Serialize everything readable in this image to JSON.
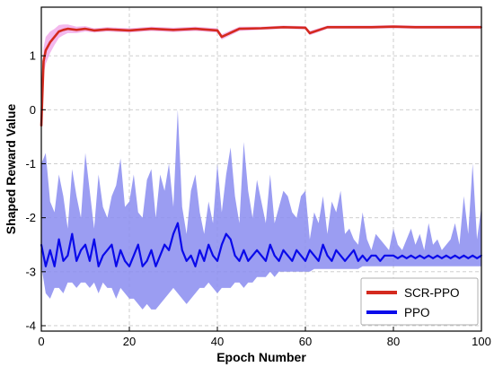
{
  "chart_data": {
    "type": "line",
    "title": "",
    "xlabel": "Epoch Number",
    "ylabel": "Shaped Reward Value",
    "xlim": [
      0,
      100
    ],
    "ylim": [
      -4.1,
      1.9
    ],
    "xticks": [
      0,
      20,
      40,
      60,
      80,
      100
    ],
    "yticks": [
      -4,
      -3,
      -2,
      -1,
      0,
      1
    ],
    "grid": true,
    "legend_position": "bottom-right",
    "series": [
      {
        "name": "SCR-PPO",
        "color": "#d42a1e",
        "band_color": "#f0a6e8",
        "x": [
          0,
          0.5,
          1,
          2,
          3,
          4,
          5,
          6,
          8,
          10,
          12,
          15,
          20,
          25,
          30,
          35,
          40,
          41,
          45,
          50,
          55,
          60,
          61,
          65,
          70,
          75,
          80,
          85,
          90,
          95,
          100
        ],
        "y": [
          -0.3,
          0.9,
          1.1,
          1.25,
          1.35,
          1.45,
          1.48,
          1.5,
          1.48,
          1.5,
          1.47,
          1.49,
          1.47,
          1.5,
          1.48,
          1.5,
          1.47,
          1.35,
          1.5,
          1.51,
          1.53,
          1.52,
          1.42,
          1.53,
          1.53,
          1.53,
          1.54,
          1.53,
          1.53,
          1.53,
          1.53
        ],
        "band": [
          0.0,
          0.25,
          0.25,
          0.2,
          0.15,
          0.12,
          0.1,
          0.08,
          0.06,
          0.05,
          0.04,
          0.04,
          0.04,
          0.04,
          0.04,
          0.04,
          0.04,
          0.05,
          0.04,
          0.03,
          0.03,
          0.03,
          0.04,
          0.03,
          0.03,
          0.03,
          0.03,
          0.03,
          0.03,
          0.03,
          0.03
        ]
      },
      {
        "name": "PPO",
        "color": "#0a0aea",
        "band_color": "#8a8cf0",
        "x": [
          0,
          1,
          2,
          3,
          4,
          5,
          6,
          7,
          8,
          9,
          10,
          11,
          12,
          13,
          14,
          15,
          16,
          17,
          18,
          19,
          20,
          21,
          22,
          23,
          24,
          25,
          26,
          27,
          28,
          29,
          30,
          31,
          32,
          33,
          34,
          35,
          36,
          37,
          38,
          39,
          40,
          41,
          42,
          43,
          44,
          45,
          46,
          47,
          48,
          49,
          50,
          51,
          52,
          53,
          54,
          55,
          56,
          57,
          58,
          59,
          60,
          61,
          62,
          63,
          64,
          65,
          66,
          67,
          68,
          69,
          70,
          71,
          72,
          73,
          74,
          75,
          76,
          77,
          78,
          79,
          80,
          81,
          82,
          83,
          84,
          85,
          86,
          87,
          88,
          89,
          90,
          91,
          92,
          93,
          94,
          95,
          96,
          97,
          98,
          99,
          100
        ],
        "y": [
          -2.5,
          -2.9,
          -2.6,
          -2.9,
          -2.4,
          -2.8,
          -2.7,
          -2.3,
          -2.8,
          -2.6,
          -2.5,
          -2.8,
          -2.4,
          -2.9,
          -2.7,
          -2.6,
          -2.5,
          -2.9,
          -2.6,
          -2.8,
          -2.9,
          -2.7,
          -2.5,
          -2.9,
          -2.8,
          -2.6,
          -2.9,
          -2.7,
          -2.5,
          -2.6,
          -2.3,
          -2.1,
          -2.6,
          -2.8,
          -2.7,
          -2.9,
          -2.6,
          -2.8,
          -2.5,
          -2.7,
          -2.8,
          -2.5,
          -2.3,
          -2.4,
          -2.7,
          -2.8,
          -2.6,
          -2.8,
          -2.7,
          -2.6,
          -2.7,
          -2.8,
          -2.5,
          -2.7,
          -2.8,
          -2.6,
          -2.7,
          -2.8,
          -2.6,
          -2.7,
          -2.8,
          -2.6,
          -2.7,
          -2.8,
          -2.5,
          -2.7,
          -2.8,
          -2.6,
          -2.7,
          -2.8,
          -2.7,
          -2.6,
          -2.8,
          -2.7,
          -2.8,
          -2.7,
          -2.7,
          -2.8,
          -2.7,
          -2.7,
          -2.7,
          -2.75,
          -2.7,
          -2.75,
          -2.7,
          -2.75,
          -2.7,
          -2.75,
          -2.7,
          -2.75,
          -2.7,
          -2.75,
          -2.7,
          -2.75,
          -2.7,
          -2.75,
          -2.7,
          -2.75,
          -2.7,
          -2.75,
          -2.7
        ],
        "band_low": [
          -2.9,
          -3.4,
          -3.5,
          -3.3,
          -3.3,
          -3.4,
          -3.2,
          -3.2,
          -3.3,
          -3.2,
          -3.2,
          -3.3,
          -3.2,
          -3.4,
          -3.2,
          -3.3,
          -3.3,
          -3.5,
          -3.3,
          -3.4,
          -3.5,
          -3.5,
          -3.6,
          -3.7,
          -3.6,
          -3.7,
          -3.7,
          -3.6,
          -3.5,
          -3.4,
          -3.3,
          -3.4,
          -3.5,
          -3.6,
          -3.5,
          -3.4,
          -3.3,
          -3.3,
          -3.2,
          -3.3,
          -3.4,
          -3.3,
          -3.3,
          -3.3,
          -3.2,
          -3.2,
          -3.3,
          -3.2,
          -3.2,
          -3.1,
          -3.1,
          -3.1,
          -3.0,
          -3.1,
          -3.0,
          -3.0,
          -3.0,
          -3.0,
          -3.0,
          -3.0,
          -3.0,
          -3.0,
          -2.95,
          -2.95,
          -2.95,
          -2.95,
          -2.95,
          -2.95,
          -2.95,
          -2.95,
          -2.95,
          -2.95,
          -2.95,
          -2.9,
          -2.9,
          -2.9,
          -2.9,
          -2.9,
          -2.9,
          -2.9,
          -2.9,
          -2.9,
          -2.9,
          -2.9,
          -2.9,
          -2.9,
          -2.9,
          -2.9,
          -2.9,
          -2.9,
          -2.9,
          -2.9,
          -2.9,
          -2.9,
          -2.9,
          -2.9,
          -2.9,
          -2.9,
          -2.9,
          -2.9,
          -2.9
        ],
        "band_high": [
          -1.0,
          -0.8,
          -1.7,
          -1.9,
          -1.2,
          -1.6,
          -2.2,
          -1.1,
          -1.6,
          -2.0,
          -0.8,
          -1.5,
          -2.2,
          -1.2,
          -1.8,
          -2.0,
          -1.6,
          -1.4,
          -0.9,
          -1.8,
          -1.7,
          -1.2,
          -1.9,
          -2.0,
          -1.3,
          -1.1,
          -2.0,
          -1.2,
          -1.5,
          -1.0,
          -1.8,
          0.0,
          -1.8,
          -2.3,
          -1.5,
          -1.2,
          -1.9,
          -2.3,
          -1.7,
          -2.1,
          -1.0,
          -1.9,
          -1.2,
          -0.7,
          -1.6,
          -2.1,
          -0.6,
          -1.5,
          -2.0,
          -1.3,
          -1.7,
          -2.1,
          -1.2,
          -2.1,
          -1.8,
          -1.5,
          -1.6,
          -1.9,
          -2.0,
          -1.6,
          -1.5,
          -2.4,
          -1.9,
          -2.1,
          -1.6,
          -2.3,
          -1.7,
          -1.9,
          -1.5,
          -2.3,
          -2.2,
          -2.4,
          -2.5,
          -1.9,
          -2.4,
          -2.6,
          -2.3,
          -2.4,
          -2.5,
          -2.6,
          -2.2,
          -2.5,
          -2.6,
          -2.4,
          -2.2,
          -2.5,
          -2.3,
          -2.6,
          -2.1,
          -2.5,
          -2.4,
          -2.6,
          -2.5,
          -2.4,
          -2.1,
          -2.5,
          -1.6,
          -2.3,
          -1.0,
          -2.4,
          -1.8
        ]
      }
    ]
  }
}
